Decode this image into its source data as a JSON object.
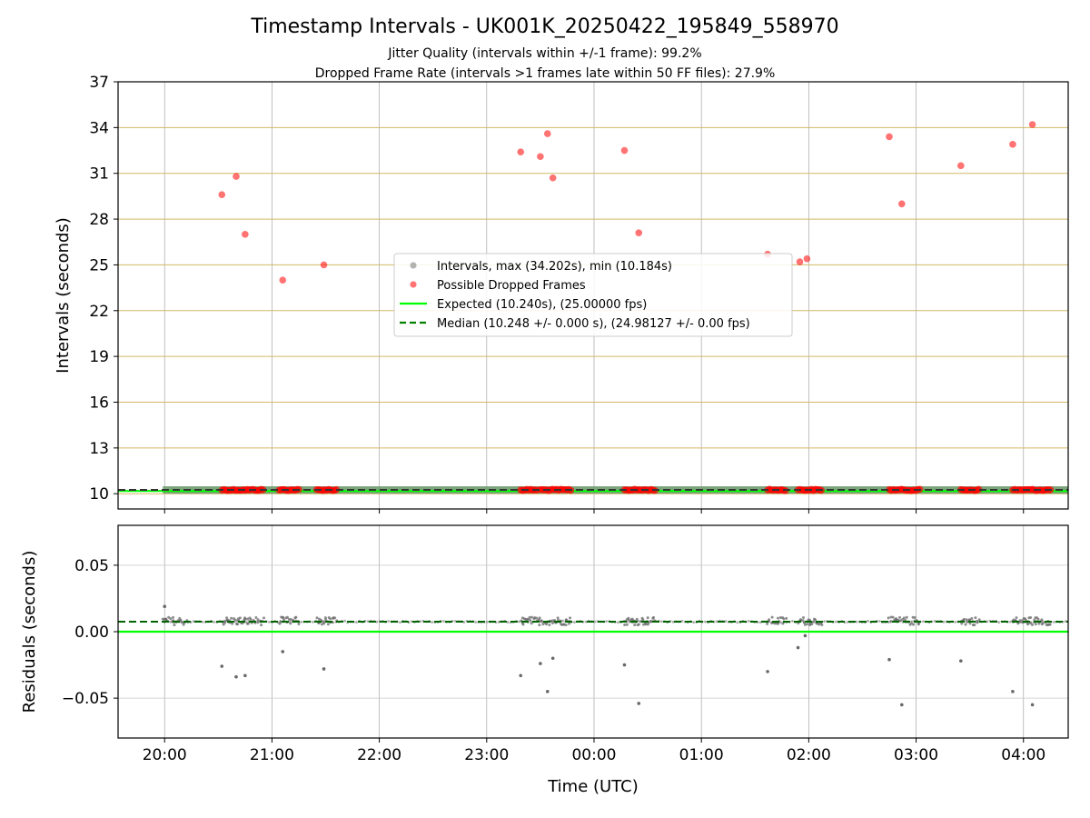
{
  "chart_data": [
    {
      "type": "scatter",
      "title": "Timestamp Intervals - UK001K_20250422_195849_558970",
      "subtitle_lines": [
        "Jitter Quality (intervals within +/-1 frame): 99.2%",
        "Dropped Frame Rate (intervals >1 frames late within 50 FF files): 27.9%"
      ],
      "xlabel": "",
      "ylabel": "Intervals (seconds)",
      "xlim": [
        "19:34",
        "04:25"
      ],
      "ylim": [
        9,
        37
      ],
      "yticks": [
        10,
        13,
        16,
        19,
        22,
        25,
        28,
        31,
        34,
        37
      ],
      "ytick_labels": [
        "10",
        "13",
        "16",
        "19",
        "22",
        "25",
        "28",
        "31",
        "34",
        "37"
      ],
      "grid": true,
      "legend_position": "center",
      "legend": [
        {
          "label": "Intervals, max (34.202s), min (10.184s)",
          "kind": "marker",
          "color": "#808080"
        },
        {
          "label": "Possible Dropped Frames",
          "kind": "marker",
          "color": "#ff0000"
        },
        {
          "label": "Expected (10.240s), (25.00000 fps)",
          "kind": "line",
          "color": "#00ff00"
        },
        {
          "label": "Median (10.248 +/- 0.000 s), (24.98127 +/- 0.00 fps)",
          "kind": "dashed",
          "color": "#008000"
        }
      ],
      "expected_interval": 10.24,
      "median_interval": 10.248,
      "series": [
        {
          "name": "Possible Dropped Frames",
          "color": "#ff0000",
          "x": [
            "20:32",
            "20:40",
            "20:45",
            "21:06",
            "21:29",
            "23:19",
            "23:30",
            "23:34",
            "23:37",
            "00:17",
            "00:25",
            "01:37",
            "01:55",
            "01:59",
            "02:45",
            "02:52",
            "03:25",
            "03:54",
            "04:05"
          ],
          "y": [
            29.6,
            30.8,
            27.0,
            24.0,
            25.0,
            32.4,
            32.1,
            33.6,
            30.7,
            32.5,
            27.1,
            25.7,
            25.2,
            25.4,
            33.4,
            29.0,
            31.5,
            32.9,
            34.2
          ]
        },
        {
          "name": "Dropped frame intervals (baseline clusters)",
          "color": "#ff0000",
          "x_ranges": [
            [
              "20:32",
              "20:55"
            ],
            [
              "21:04",
              "21:15"
            ],
            [
              "21:25",
              "21:36"
            ],
            [
              "23:19",
              "23:28"
            ],
            [
              "23:30",
              "23:47"
            ],
            [
              "00:17",
              "00:34"
            ],
            [
              "01:37",
              "01:47"
            ],
            [
              "01:54",
              "02:07"
            ],
            [
              "02:45",
              "03:02"
            ],
            [
              "03:25",
              "03:35"
            ],
            [
              "03:54",
              "04:04"
            ],
            [
              "04:05",
              "04:15"
            ]
          ],
          "y": 10.25
        }
      ]
    },
    {
      "type": "scatter",
      "xlabel": "Time (UTC)",
      "ylabel": "Residuals (seconds)",
      "xlim": [
        "19:34",
        "04:25"
      ],
      "ylim": [
        -0.08,
        0.08
      ],
      "yticks": [
        0.05,
        0.0,
        -0.05
      ],
      "ytick_labels": [
        "0.05",
        "0.00",
        "−0.05"
      ],
      "xticks": [
        "20:00",
        "21:00",
        "22:00",
        "23:00",
        "00:00",
        "01:00",
        "02:00",
        "03:00",
        "04:00"
      ],
      "xtick_labels": [
        "20:00",
        "21:00",
        "22:00",
        "23:00",
        "00:00",
        "01:00",
        "02:00",
        "03:00",
        "04:00"
      ],
      "grid": true,
      "expected_residual": 0.0,
      "median_residual": 0.0075,
      "series": [
        {
          "name": "Residual outliers",
          "color": "#696969",
          "x": [
            "20:00",
            "20:32",
            "20:40",
            "20:45",
            "21:06",
            "21:29",
            "23:19",
            "23:30",
            "23:34",
            "23:37",
            "00:17",
            "00:25",
            "01:37",
            "01:54",
            "01:58",
            "02:45",
            "02:52",
            "03:25",
            "03:54",
            "04:05"
          ],
          "y": [
            0.019,
            -0.026,
            -0.034,
            -0.033,
            -0.015,
            -0.028,
            -0.033,
            -0.024,
            -0.045,
            -0.02,
            -0.025,
            -0.054,
            -0.03,
            -0.012,
            -0.003,
            -0.021,
            -0.055,
            -0.022,
            -0.045,
            -0.055
          ]
        },
        {
          "name": "Residual clusters",
          "color": "#696969",
          "x_ranges": [
            [
              "19:59",
              "20:12"
            ],
            [
              "20:32",
              "20:55"
            ],
            [
              "21:04",
              "21:15"
            ],
            [
              "21:25",
              "21:36"
            ],
            [
              "23:19",
              "23:47"
            ],
            [
              "00:17",
              "00:34"
            ],
            [
              "01:37",
              "01:47"
            ],
            [
              "01:54",
              "02:07"
            ],
            [
              "02:45",
              "03:02"
            ],
            [
              "03:25",
              "03:35"
            ],
            [
              "03:54",
              "04:15"
            ]
          ],
          "y": 0.008
        }
      ]
    }
  ]
}
